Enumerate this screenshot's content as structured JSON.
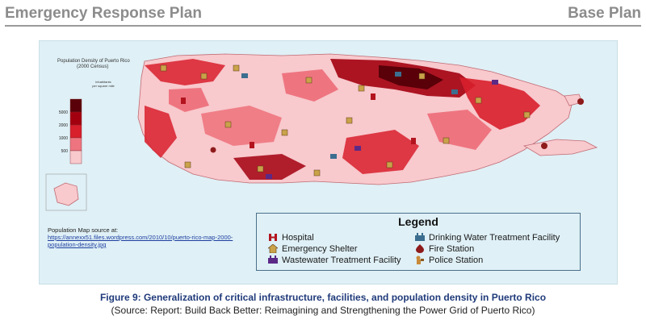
{
  "header": {
    "left_title": "Emergency Response Plan",
    "right_title": "Base Plan"
  },
  "map": {
    "density_title_line1": "Population Density of Puerto Rico",
    "density_title_line2": "(2000 Census)",
    "density_units_line1": "inhabitants",
    "density_units_line2": "per square mile",
    "density_classes": [
      {
        "label": "5000",
        "color": "#5a0008"
      },
      {
        "label": "2000",
        "color": "#a3000f"
      },
      {
        "label": "1000",
        "color": "#d81f2c"
      },
      {
        "label": "500",
        "color": "#ee7580"
      },
      {
        "label": "",
        "color": "#f8c9cd"
      }
    ],
    "source_label": "Population Map source at:",
    "source_link_line1": "https://annexx51.files.wordpress.com/2010/10/puerto-rico-map-2000-",
    "source_link_line2": "population-density.jpg",
    "legend": {
      "title": "Legend",
      "items": [
        {
          "label": "Hospital",
          "icon": "hospital-icon",
          "color": "#b3141e"
        },
        {
          "label": "Emergency Shelter",
          "icon": "shelter-icon",
          "color": "#c9a24a"
        },
        {
          "label": "Wastewater Treatment Facility",
          "icon": "wastewater-icon",
          "color": "#5b2a86"
        },
        {
          "label": "Drinking Water Treatment Facility",
          "icon": "drinking-water-icon",
          "color": "#3b6e8f"
        },
        {
          "label": "Fire Station",
          "icon": "fire-station-icon",
          "color": "#8e1b1b"
        },
        {
          "label": "Police Station",
          "icon": "police-station-icon",
          "color": "#c98a3a"
        }
      ]
    }
  },
  "caption": {
    "title": "Figure 9: Generalization of critical infrastructure, facilities, and population density in Puerto Rico",
    "source": "(Source: Report: Build Back Better: Reimagining and Strengthening the Power Grid of Puerto Rico)"
  }
}
